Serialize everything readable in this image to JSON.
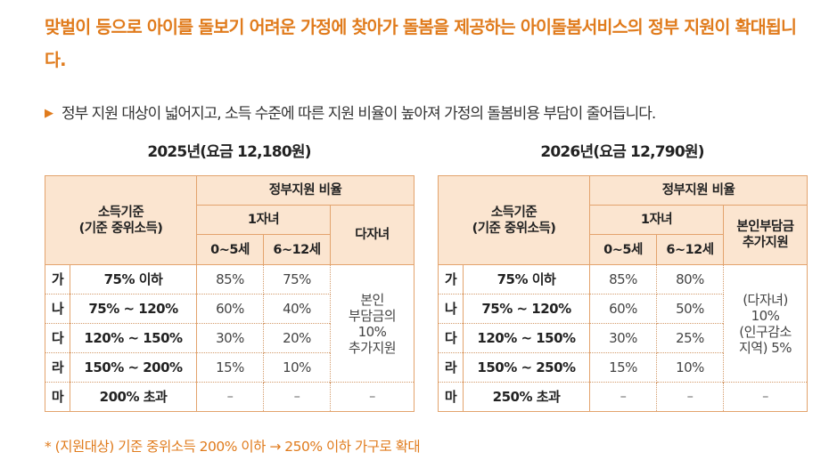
{
  "headline": "맞벌이 등으로 아이를 돌보기 어려운 가정에 찾아가 돌봄을 제공하는 아이돌봄서비스의 정부 지원이 확대됩니다.",
  "bullet": "정부 지원 대상이 넓어지고, 소득 수준에 따른 지원 비율이 높아져 가정의 돌봄비용 부담이 줄어듭니다.",
  "tables": {
    "t2025": {
      "caption": "2025년(요금 12,180원)",
      "h_income_1": "소득기준",
      "h_income_2": "(기준 중위소득)",
      "h_support": "정부지원 비율",
      "h_onechild": "1자녀",
      "h_multi": "다자녀",
      "h_age1": "0~5세",
      "h_age2": "6~12세",
      "rows": [
        {
          "grade": "가",
          "income": "75% 이하",
          "a": "85%",
          "b": "75%"
        },
        {
          "grade": "나",
          "income": "75% ~ 120%",
          "a": "60%",
          "b": "40%"
        },
        {
          "grade": "다",
          "income": "120% ~ 150%",
          "a": "30%",
          "b": "20%"
        },
        {
          "grade": "라",
          "income": "150% ~ 200%",
          "a": "15%",
          "b": "10%"
        },
        {
          "grade": "마",
          "income": "200% 초과",
          "a": "–",
          "b": "–",
          "c": "–"
        }
      ],
      "merged_1": "본인",
      "merged_2": "부담금의",
      "merged_3": "10%",
      "merged_4": "추가지원"
    },
    "t2026": {
      "caption": "2026년(요금 12,790원)",
      "h_income_1": "소득기준",
      "h_income_2": "(기준 중위소득)",
      "h_support": "정부지원 비율",
      "h_onechild": "1자녀",
      "h_multi_1": "본인부담금",
      "h_multi_2": "추가지원",
      "h_age1": "0~5세",
      "h_age2": "6~12세",
      "rows": [
        {
          "grade": "가",
          "income": "75% 이하",
          "a": "85%",
          "b": "80%"
        },
        {
          "grade": "나",
          "income": "75% ~ 120%",
          "a": "60%",
          "b": "50%"
        },
        {
          "grade": "다",
          "income": "120% ~ 150%",
          "a": "30%",
          "b": "25%"
        },
        {
          "grade": "라",
          "income": "150% ~ 250%",
          "a": "15%",
          "b": "10%"
        },
        {
          "grade": "마",
          "income": "250% 초과",
          "a": "–",
          "b": "–",
          "c": "–"
        }
      ],
      "merged_1": "(다자녀)",
      "merged_2": "10%",
      "merged_3": "(인구감소",
      "merged_4": "지역) 5%"
    }
  },
  "footnote": "* (지원대상) 기준 중위소득 200% 이하 → 250% 이하 가구로 확대"
}
